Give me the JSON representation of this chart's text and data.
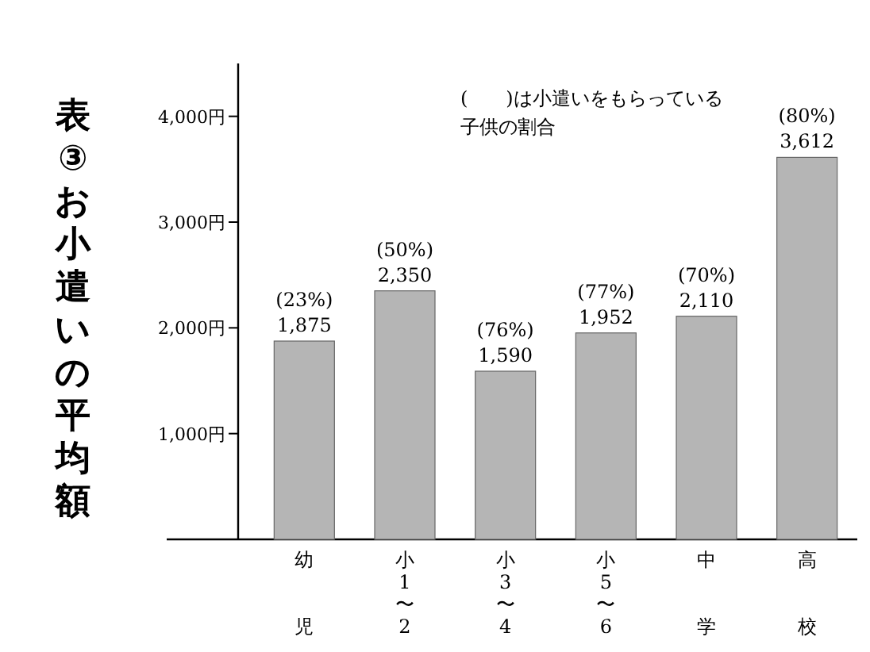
{
  "chart_data": {
    "type": "bar",
    "title": "表③ お小遣いの平均額",
    "categories": [
      "幼児",
      "小1〜2",
      "小3〜4",
      "小5〜6",
      "中学",
      "高校"
    ],
    "values": [
      1875,
      2350,
      1590,
      1952,
      2110,
      3612
    ],
    "value_labels": [
      "(23%)\n1,875",
      "(50%)\n2,350",
      "(76%)\n1,590",
      "(77%)\n1,952",
      "(70%)\n2,110",
      "(80%)\n3,612"
    ],
    "color": "#b5b5b5",
    "ylim": [
      0,
      4500
    ],
    "yticks": [
      {
        "value": 1000,
        "label": "1,000円"
      },
      {
        "value": 2000,
        "label": "2,000円"
      },
      {
        "value": 3000,
        "label": "3,000円"
      },
      {
        "value": 4000,
        "label": "4,000円"
      }
    ],
    "annotations": [
      "(　　)は小遣いをもらっている子供の割合"
    ]
  }
}
